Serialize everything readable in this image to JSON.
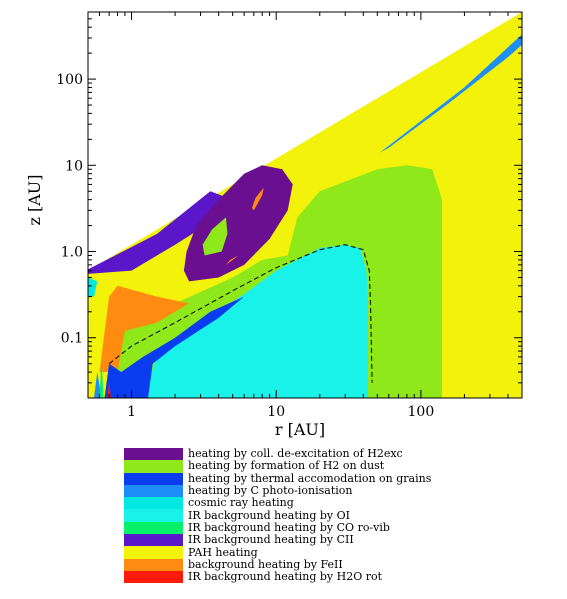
{
  "chart_data": {
    "type": "heatmap",
    "title": "",
    "xlabel": "r [AU]",
    "ylabel": "z [AU]",
    "x_scale": "log",
    "y_scale": "log",
    "xlim": [
      0.5,
      500
    ],
    "ylim": [
      0.02,
      600
    ],
    "x_ticks": [
      {
        "value": 1,
        "label": "1"
      },
      {
        "value": 10,
        "label": "10"
      },
      {
        "value": 100,
        "label": "100"
      }
    ],
    "y_ticks": [
      {
        "value": 0.1,
        "label": "0.1"
      },
      {
        "value": 1.0,
        "label": "1.0"
      },
      {
        "value": 10,
        "label": "10"
      },
      {
        "value": 100,
        "label": "100"
      }
    ],
    "colors": {
      "h2exc": "#6a0f8f",
      "h2form": "#8fe81a",
      "thermal": "#0a3cf0",
      "cphoto": "#1c8ef5",
      "cosmic": "#00e8e0",
      "oi": "#18f2e8",
      "co": "#06f06a",
      "cii": "#5a16c8",
      "pah": "#f2f20a",
      "feii": "#ff8c10",
      "h2o": "#ff1a0a"
    },
    "regions": [
      {
        "name": "PAH heating",
        "color_key": "pah",
        "polygon": [
          [
            0.5,
            0.02
          ],
          [
            500,
            0.02
          ],
          [
            500,
            600
          ],
          [
            0.5,
            0.6
          ]
        ]
      },
      {
        "name": "heating by formation of H2 on dust",
        "color_key": "h2form",
        "polygon": [
          [
            0.8,
            0.12
          ],
          [
            2,
            0.25
          ],
          [
            5,
            0.5
          ],
          [
            8,
            0.8
          ],
          [
            12,
            0.9
          ],
          [
            14,
            2.5
          ],
          [
            20,
            5
          ],
          [
            50,
            9
          ],
          [
            80,
            10
          ],
          [
            120,
            9
          ],
          [
            140,
            4
          ],
          [
            140,
            0.02
          ],
          [
            0.8,
            0.02
          ]
        ]
      },
      {
        "name": "IR background heating by CII",
        "color_key": "cii",
        "polygon": [
          [
            0.5,
            0.55
          ],
          [
            1,
            0.6
          ],
          [
            2,
            1.2
          ],
          [
            4,
            2.5
          ],
          [
            5,
            4
          ],
          [
            3.5,
            5
          ],
          [
            1.5,
            1.6
          ],
          [
            0.5,
            0.62
          ]
        ]
      },
      {
        "name": "heating by coll. de-excitation of H2exc",
        "color_key": "h2exc",
        "polygon": [
          [
            2.5,
            0.45
          ],
          [
            4,
            0.5
          ],
          [
            6,
            0.7
          ],
          [
            9,
            1.4
          ],
          [
            12,
            3
          ],
          [
            13,
            6
          ],
          [
            11,
            9
          ],
          [
            8,
            10
          ],
          [
            6,
            8
          ],
          [
            4,
            4
          ],
          [
            2.8,
            2
          ],
          [
            2.4,
            1
          ],
          [
            2.3,
            0.6
          ]
        ]
      },
      {
        "name": "heating by formation of H2 on dust",
        "color_key": "h2form",
        "polygon": [
          [
            3.2,
            0.9
          ],
          [
            4.2,
            1
          ],
          [
            4.6,
            1.6
          ],
          [
            4.5,
            2.5
          ],
          [
            3.6,
            1.8
          ],
          [
            3.1,
            1.2
          ]
        ]
      },
      {
        "name": "background heating by FeII",
        "color_key": "feii",
        "polygon": [
          [
            7,
            3
          ],
          [
            8,
            4.5
          ],
          [
            8.2,
            5.5
          ],
          [
            7.2,
            4.2
          ],
          [
            6.8,
            3.2
          ]
        ]
      },
      {
        "name": "background heating by FeII",
        "color_key": "feii",
        "polygon": [
          [
            4.5,
            0.7
          ],
          [
            5.5,
            0.9
          ],
          [
            4.8,
            0.8
          ]
        ]
      },
      {
        "name": "background heating by FeII",
        "color_key": "feii",
        "polygon": [
          [
            0.6,
            0.04
          ],
          [
            0.7,
            0.3
          ],
          [
            0.8,
            0.4
          ],
          [
            1.5,
            0.3
          ],
          [
            2.5,
            0.25
          ],
          [
            1.5,
            0.15
          ],
          [
            0.9,
            0.12
          ],
          [
            0.8,
            0.04
          ]
        ]
      },
      {
        "name": "IR background heating by OI",
        "color_key": "oi",
        "polygon": [
          [
            1.2,
            0.02
          ],
          [
            1.5,
            0.06
          ],
          [
            3,
            0.15
          ],
          [
            6,
            0.32
          ],
          [
            10,
            0.6
          ],
          [
            20,
            1.1
          ],
          [
            30,
            1.2
          ],
          [
            38,
            1.1
          ],
          [
            42,
            0.6
          ],
          [
            43,
            0.3
          ],
          [
            43,
            0.02
          ]
        ]
      },
      {
        "name": "heating by thermal accomodation on grains",
        "color_key": "thermal",
        "polygon": [
          [
            0.65,
            0.02
          ],
          [
            0.7,
            0.05
          ],
          [
            0.85,
            0.04
          ],
          [
            1.2,
            0.06
          ],
          [
            2,
            0.1
          ],
          [
            3.5,
            0.2
          ],
          [
            6,
            0.3
          ],
          [
            4,
            0.17
          ],
          [
            2,
            0.08
          ],
          [
            1.4,
            0.05
          ],
          [
            1.3,
            0.02
          ]
        ]
      },
      {
        "name": "heating by C photo-ionisation",
        "color_key": "cphoto",
        "polygon": [
          [
            52,
            14
          ],
          [
            200,
            80
          ],
          [
            470,
            300
          ],
          [
            500,
            330
          ],
          [
            500,
            250
          ],
          [
            400,
            180
          ],
          [
            150,
            50
          ],
          [
            60,
            16
          ]
        ]
      },
      {
        "name": "heating by C photo-ionisation",
        "color_key": "cphoto",
        "polygon": [
          [
            0.55,
            0.02
          ],
          [
            0.58,
            0.04
          ],
          [
            0.62,
            0.02
          ]
        ]
      },
      {
        "name": "IR background heating by CO ro-vib",
        "color_key": "co",
        "polygon": [
          [
            0.6,
            0.02
          ],
          [
            0.62,
            0.06
          ],
          [
            0.64,
            0.02
          ]
        ]
      },
      {
        "name": "IR background heating by H2O rot",
        "color_key": "h2o",
        "polygon": [
          [
            0.68,
            0.02
          ],
          [
            0.7,
            0.03
          ],
          [
            0.72,
            0.02
          ]
        ]
      },
      {
        "name": "cosmic ray heating",
        "color_key": "cosmic",
        "polygon": [
          [
            0.5,
            0.5
          ],
          [
            0.58,
            0.45
          ],
          [
            0.55,
            0.3
          ],
          [
            0.5,
            0.3
          ]
        ]
      }
    ],
    "dashed_contour": [
      [
        0.7,
        0.05
      ],
      [
        1,
        0.08
      ],
      [
        2,
        0.15
      ],
      [
        5,
        0.35
      ],
      [
        10,
        0.65
      ],
      [
        20,
        1.05
      ],
      [
        30,
        1.2
      ],
      [
        40,
        1.05
      ],
      [
        44,
        0.6
      ],
      [
        45,
        0.2
      ],
      [
        46,
        0.03
      ]
    ],
    "legend": [
      {
        "label": "heating by coll. de-excitation of H2exc",
        "color_key": "h2exc"
      },
      {
        "label": "heating by formation of H2 on dust",
        "color_key": "h2form"
      },
      {
        "label": "heating by thermal accomodation on grains",
        "color_key": "thermal"
      },
      {
        "label": "heating by C photo-ionisation",
        "color_key": "cphoto"
      },
      {
        "label": "cosmic ray heating",
        "color_key": "cosmic"
      },
      {
        "label": "IR background heating by OI",
        "color_key": "oi"
      },
      {
        "label": "IR background heating by CO ro-vib",
        "color_key": "co"
      },
      {
        "label": "IR background heating by CII",
        "color_key": "cii"
      },
      {
        "label": "PAH heating",
        "color_key": "pah"
      },
      {
        "label": "background heating by FeII",
        "color_key": "feii"
      },
      {
        "label": "IR background heating by H2O rot",
        "color_key": "h2o"
      }
    ],
    "legend_position": "bottom"
  }
}
